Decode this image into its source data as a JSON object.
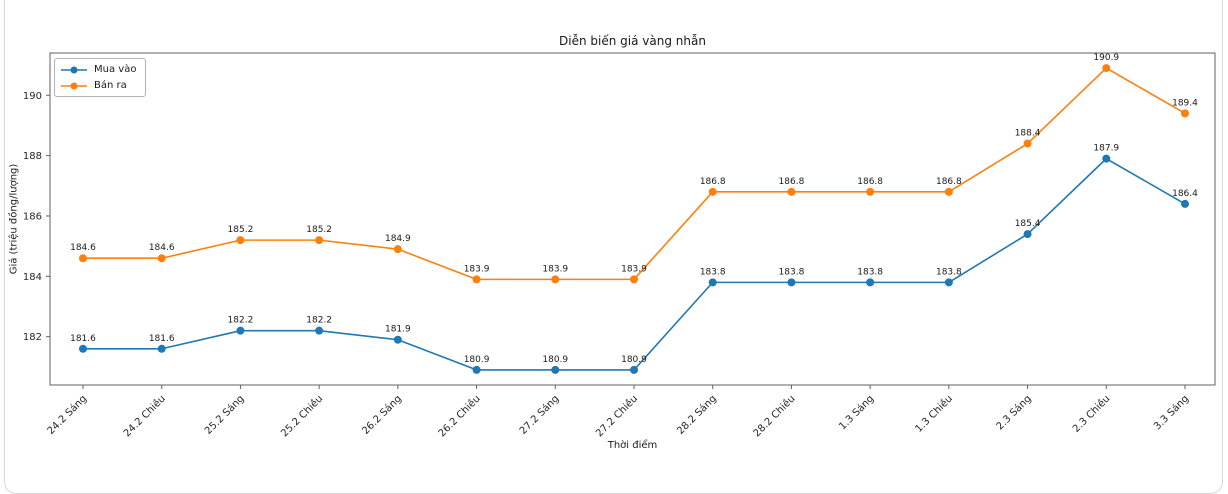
{
  "figure": {
    "title": "Diễn biến giá vàng nhẫn",
    "xlabel": "Thời điểm",
    "ylabel": "Giá (triệu đồng/lượng)"
  },
  "legend": {
    "position": "upper left",
    "items": [
      {
        "label": "Mua vào",
        "color": "#1f77b4",
        "icon": "line-circle-marker-icon"
      },
      {
        "label": "Bán ra",
        "color": "#ff7f0e",
        "icon": "line-circle-marker-icon"
      }
    ]
  },
  "chart_data": {
    "type": "line",
    "title": "Diễn biến giá vàng nhẫn",
    "xlabel": "Thời điểm",
    "ylabel": "Giá (triệu đồng/lượng)",
    "categories": [
      "24.2 Sáng",
      "24.2 Chiều",
      "25.2 Sáng",
      "25.2 Chiều",
      "26.2 Sáng",
      "26.2 Chiều",
      "27.2 Sáng",
      "27.2 Chiều",
      "28.2 Sáng",
      "28.2 Chiều",
      "1.3 Sáng",
      "1.3 Chiều",
      "2.3 Sáng",
      "2.3 Chiều",
      "3.3 Sáng"
    ],
    "series": [
      {
        "name": "Mua vào",
        "color": "#1f77b4",
        "values": [
          181.6,
          181.6,
          182.2,
          182.2,
          181.9,
          180.9,
          180.9,
          180.9,
          183.8,
          183.8,
          183.8,
          183.8,
          185.4,
          187.9,
          186.4
        ]
      },
      {
        "name": "Bán ra",
        "color": "#ff7f0e",
        "values": [
          184.6,
          184.6,
          185.2,
          185.2,
          184.9,
          183.9,
          183.9,
          183.9,
          186.8,
          186.8,
          186.8,
          186.8,
          188.4,
          190.9,
          189.4
        ]
      }
    ],
    "yticks": [
      182,
      184,
      186,
      188,
      190
    ],
    "ylim": [
      180.4,
      191.4
    ],
    "grid": false,
    "point_labels": true,
    "marker": "circle",
    "legend_position": "upper left"
  },
  "colors": {
    "spine": "#606060",
    "tick_text": "#262626",
    "annotation_text": "#1a1a1a",
    "background": "#ffffff"
  }
}
